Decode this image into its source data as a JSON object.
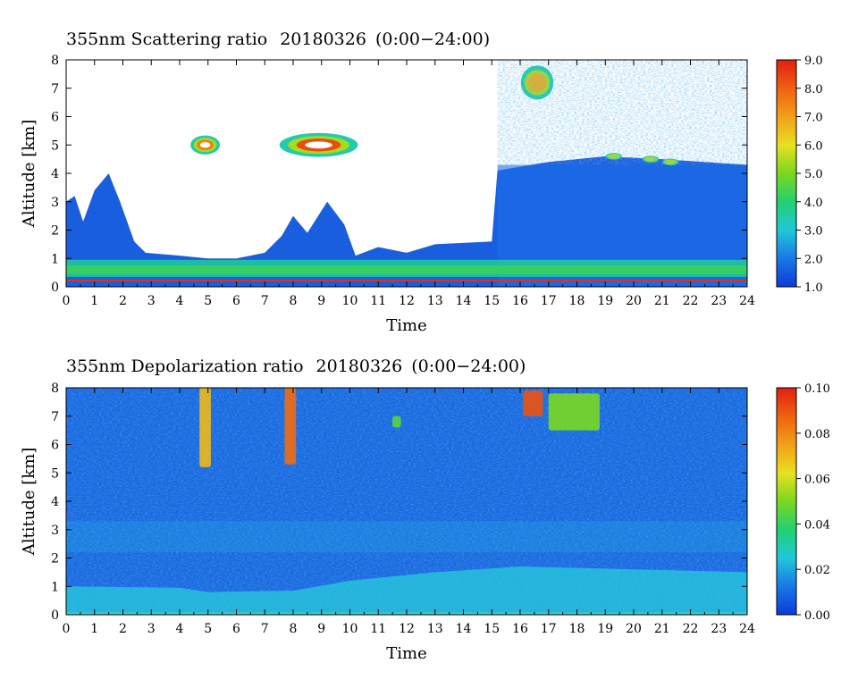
{
  "chart_data": [
    {
      "type": "heatmap",
      "title": "355nm Scattering ratio",
      "date": "20180326",
      "time_range": "(0:00−24:00)",
      "xlabel": "Time",
      "ylabel": "Altitude [km]",
      "xlim": [
        0,
        24
      ],
      "ylim": [
        0,
        8
      ],
      "x_ticks": [
        "0",
        "1",
        "2",
        "3",
        "4",
        "5",
        "6",
        "7",
        "8",
        "9",
        "10",
        "11",
        "12",
        "13",
        "14",
        "15",
        "16",
        "17",
        "18",
        "19",
        "20",
        "21",
        "22",
        "23",
        "24"
      ],
      "y_ticks": [
        "0",
        "1",
        "2",
        "3",
        "4",
        "5",
        "6",
        "7",
        "8"
      ],
      "colorbar": {
        "min": 1.0,
        "max": 9.0,
        "ticks": [
          "1.0",
          "2.0",
          "3.0",
          "4.0",
          "5.0",
          "6.0",
          "7.0",
          "8.0",
          "9.0"
        ]
      },
      "background_top_km": [
        [
          0,
          3.0
        ],
        [
          0.3,
          3.2
        ],
        [
          0.6,
          2.3
        ],
        [
          1.0,
          3.4
        ],
        [
          1.5,
          4.0
        ],
        [
          1.9,
          3.0
        ],
        [
          2.4,
          1.6
        ],
        [
          2.8,
          1.2
        ],
        [
          4.0,
          1.1
        ],
        [
          5.0,
          1.0
        ],
        [
          6.0,
          1.0
        ],
        [
          7.0,
          1.2
        ],
        [
          7.6,
          1.8
        ],
        [
          8.0,
          2.5
        ],
        [
          8.5,
          1.9
        ],
        [
          9.2,
          3.0
        ],
        [
          9.8,
          2.2
        ],
        [
          10.2,
          1.1
        ],
        [
          11.0,
          1.4
        ],
        [
          12.0,
          1.2
        ],
        [
          13.0,
          1.5
        ],
        [
          15.0,
          1.6
        ],
        [
          15.2,
          4.1
        ],
        [
          17.0,
          4.4
        ],
        [
          19.0,
          4.6
        ],
        [
          21.0,
          4.5
        ],
        [
          24.0,
          4.3
        ]
      ],
      "aerosol_layers": [
        {
          "x0": 0,
          "x1": 24,
          "y0": 0.35,
          "y1": 0.95,
          "value": 3.6
        },
        {
          "x0": 0,
          "x1": 24,
          "y0": 0.45,
          "y1": 0.75,
          "value": 4.3
        }
      ],
      "cloud_features": [
        {
          "x": 4.9,
          "y": 5.0,
          "rx": 0.45,
          "ry": 0.28,
          "value": 7.5
        },
        {
          "x": 8.9,
          "y": 5.0,
          "rx": 1.2,
          "ry": 0.35,
          "value": 8.3
        },
        {
          "x": 16.6,
          "y": 7.2,
          "rx": 0.5,
          "ry": 0.5,
          "value": 6.8
        },
        {
          "x": 19.3,
          "y": 4.6,
          "rx": 0.25,
          "ry": 0.1,
          "value": 5.5
        },
        {
          "x": 20.6,
          "y": 4.5,
          "rx": 0.25,
          "ry": 0.1,
          "value": 5.5
        },
        {
          "x": 21.3,
          "y": 4.4,
          "rx": 0.25,
          "ry": 0.1,
          "value": 5.5
        }
      ]
    },
    {
      "type": "heatmap",
      "title": "355nm Depolarization ratio",
      "date": "20180326",
      "time_range": "(0:00−24:00)",
      "xlabel": "Time",
      "ylabel": "Altitude [km]",
      "xlim": [
        0,
        24
      ],
      "ylim": [
        0,
        8
      ],
      "x_ticks": [
        "0",
        "1",
        "2",
        "3",
        "4",
        "5",
        "6",
        "7",
        "8",
        "9",
        "10",
        "11",
        "12",
        "13",
        "14",
        "15",
        "16",
        "17",
        "18",
        "19",
        "20",
        "21",
        "22",
        "23",
        "24"
      ],
      "y_ticks": [
        "0",
        "1",
        "2",
        "3",
        "4",
        "5",
        "6",
        "7",
        "8"
      ],
      "colorbar": {
        "min": 0.0,
        "max": 0.1,
        "ticks": [
          "0.00",
          "0.02",
          "0.04",
          "0.06",
          "0.08",
          "0.10"
        ]
      },
      "background_value": 0.015,
      "low_layer_top_km": [
        [
          0,
          1.0
        ],
        [
          4,
          0.95
        ],
        [
          5,
          0.8
        ],
        [
          8,
          0.85
        ],
        [
          10,
          1.2
        ],
        [
          13,
          1.5
        ],
        [
          16,
          1.7
        ],
        [
          20,
          1.6
        ],
        [
          24,
          1.5
        ]
      ],
      "low_layer_value": 0.022,
      "upper_features": [
        {
          "x0": 4.7,
          "x1": 5.1,
          "y0": 5.2,
          "y1": 8.0,
          "value": 0.07
        },
        {
          "x0": 7.7,
          "x1": 8.1,
          "y0": 5.3,
          "y1": 8.0,
          "value": 0.085
        },
        {
          "x0": 16.1,
          "x1": 16.8,
          "y0": 7.0,
          "y1": 7.9,
          "value": 0.09
        },
        {
          "x0": 11.5,
          "x1": 11.8,
          "y0": 6.6,
          "y1": 7.0,
          "value": 0.045
        },
        {
          "x0": 17.0,
          "x1": 18.8,
          "y0": 6.5,
          "y1": 7.8,
          "value": 0.05
        }
      ]
    }
  ]
}
